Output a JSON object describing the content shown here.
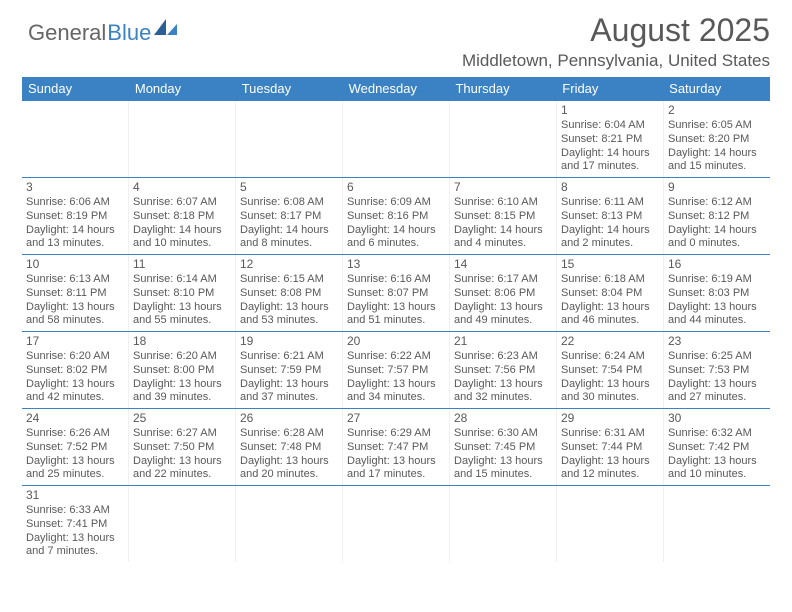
{
  "logo": {
    "general": "General",
    "blue": "Blue"
  },
  "header": {
    "month": "August 2025",
    "location": "Middletown, Pennsylvania, United States"
  },
  "colors": {
    "accent": "#3b82c4",
    "text": "#595959",
    "bg": "#ffffff"
  },
  "dayNames": [
    "Sunday",
    "Monday",
    "Tuesday",
    "Wednesday",
    "Thursday",
    "Friday",
    "Saturday"
  ],
  "weeks": [
    [
      null,
      null,
      null,
      null,
      null,
      {
        "n": "1",
        "sr": "Sunrise: 6:04 AM",
        "ss": "Sunset: 8:21 PM",
        "dl": "Daylight: 14 hours and 17 minutes."
      },
      {
        "n": "2",
        "sr": "Sunrise: 6:05 AM",
        "ss": "Sunset: 8:20 PM",
        "dl": "Daylight: 14 hours and 15 minutes."
      }
    ],
    [
      {
        "n": "3",
        "sr": "Sunrise: 6:06 AM",
        "ss": "Sunset: 8:19 PM",
        "dl": "Daylight: 14 hours and 13 minutes."
      },
      {
        "n": "4",
        "sr": "Sunrise: 6:07 AM",
        "ss": "Sunset: 8:18 PM",
        "dl": "Daylight: 14 hours and 10 minutes."
      },
      {
        "n": "5",
        "sr": "Sunrise: 6:08 AM",
        "ss": "Sunset: 8:17 PM",
        "dl": "Daylight: 14 hours and 8 minutes."
      },
      {
        "n": "6",
        "sr": "Sunrise: 6:09 AM",
        "ss": "Sunset: 8:16 PM",
        "dl": "Daylight: 14 hours and 6 minutes."
      },
      {
        "n": "7",
        "sr": "Sunrise: 6:10 AM",
        "ss": "Sunset: 8:15 PM",
        "dl": "Daylight: 14 hours and 4 minutes."
      },
      {
        "n": "8",
        "sr": "Sunrise: 6:11 AM",
        "ss": "Sunset: 8:13 PM",
        "dl": "Daylight: 14 hours and 2 minutes."
      },
      {
        "n": "9",
        "sr": "Sunrise: 6:12 AM",
        "ss": "Sunset: 8:12 PM",
        "dl": "Daylight: 14 hours and 0 minutes."
      }
    ],
    [
      {
        "n": "10",
        "sr": "Sunrise: 6:13 AM",
        "ss": "Sunset: 8:11 PM",
        "dl": "Daylight: 13 hours and 58 minutes."
      },
      {
        "n": "11",
        "sr": "Sunrise: 6:14 AM",
        "ss": "Sunset: 8:10 PM",
        "dl": "Daylight: 13 hours and 55 minutes."
      },
      {
        "n": "12",
        "sr": "Sunrise: 6:15 AM",
        "ss": "Sunset: 8:08 PM",
        "dl": "Daylight: 13 hours and 53 minutes."
      },
      {
        "n": "13",
        "sr": "Sunrise: 6:16 AM",
        "ss": "Sunset: 8:07 PM",
        "dl": "Daylight: 13 hours and 51 minutes."
      },
      {
        "n": "14",
        "sr": "Sunrise: 6:17 AM",
        "ss": "Sunset: 8:06 PM",
        "dl": "Daylight: 13 hours and 49 minutes."
      },
      {
        "n": "15",
        "sr": "Sunrise: 6:18 AM",
        "ss": "Sunset: 8:04 PM",
        "dl": "Daylight: 13 hours and 46 minutes."
      },
      {
        "n": "16",
        "sr": "Sunrise: 6:19 AM",
        "ss": "Sunset: 8:03 PM",
        "dl": "Daylight: 13 hours and 44 minutes."
      }
    ],
    [
      {
        "n": "17",
        "sr": "Sunrise: 6:20 AM",
        "ss": "Sunset: 8:02 PM",
        "dl": "Daylight: 13 hours and 42 minutes."
      },
      {
        "n": "18",
        "sr": "Sunrise: 6:20 AM",
        "ss": "Sunset: 8:00 PM",
        "dl": "Daylight: 13 hours and 39 minutes."
      },
      {
        "n": "19",
        "sr": "Sunrise: 6:21 AM",
        "ss": "Sunset: 7:59 PM",
        "dl": "Daylight: 13 hours and 37 minutes."
      },
      {
        "n": "20",
        "sr": "Sunrise: 6:22 AM",
        "ss": "Sunset: 7:57 PM",
        "dl": "Daylight: 13 hours and 34 minutes."
      },
      {
        "n": "21",
        "sr": "Sunrise: 6:23 AM",
        "ss": "Sunset: 7:56 PM",
        "dl": "Daylight: 13 hours and 32 minutes."
      },
      {
        "n": "22",
        "sr": "Sunrise: 6:24 AM",
        "ss": "Sunset: 7:54 PM",
        "dl": "Daylight: 13 hours and 30 minutes."
      },
      {
        "n": "23",
        "sr": "Sunrise: 6:25 AM",
        "ss": "Sunset: 7:53 PM",
        "dl": "Daylight: 13 hours and 27 minutes."
      }
    ],
    [
      {
        "n": "24",
        "sr": "Sunrise: 6:26 AM",
        "ss": "Sunset: 7:52 PM",
        "dl": "Daylight: 13 hours and 25 minutes."
      },
      {
        "n": "25",
        "sr": "Sunrise: 6:27 AM",
        "ss": "Sunset: 7:50 PM",
        "dl": "Daylight: 13 hours and 22 minutes."
      },
      {
        "n": "26",
        "sr": "Sunrise: 6:28 AM",
        "ss": "Sunset: 7:48 PM",
        "dl": "Daylight: 13 hours and 20 minutes."
      },
      {
        "n": "27",
        "sr": "Sunrise: 6:29 AM",
        "ss": "Sunset: 7:47 PM",
        "dl": "Daylight: 13 hours and 17 minutes."
      },
      {
        "n": "28",
        "sr": "Sunrise: 6:30 AM",
        "ss": "Sunset: 7:45 PM",
        "dl": "Daylight: 13 hours and 15 minutes."
      },
      {
        "n": "29",
        "sr": "Sunrise: 6:31 AM",
        "ss": "Sunset: 7:44 PM",
        "dl": "Daylight: 13 hours and 12 minutes."
      },
      {
        "n": "30",
        "sr": "Sunrise: 6:32 AM",
        "ss": "Sunset: 7:42 PM",
        "dl": "Daylight: 13 hours and 10 minutes."
      }
    ],
    [
      {
        "n": "31",
        "sr": "Sunrise: 6:33 AM",
        "ss": "Sunset: 7:41 PM",
        "dl": "Daylight: 13 hours and 7 minutes."
      },
      null,
      null,
      null,
      null,
      null,
      null
    ]
  ]
}
